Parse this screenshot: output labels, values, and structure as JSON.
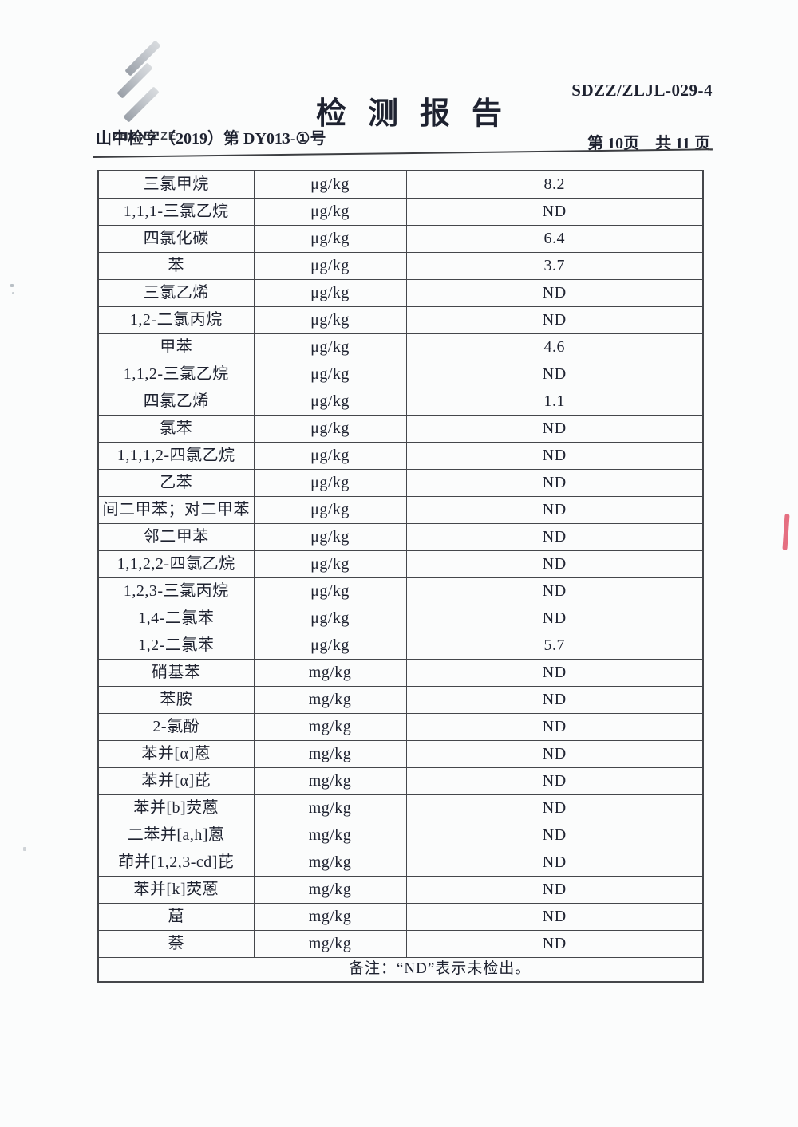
{
  "colors": {
    "paper": "#fbfcfc",
    "ink": "#1e2230",
    "line": "#45474b",
    "logogray": "#aab0b6",
    "redmark": "#e0566b"
  },
  "header": {
    "logo_text": "ZHONG ZE",
    "logo_icon": "three-diagonal-stripes",
    "doc_code": "SDZZ/ZLJL-029-4",
    "title": "检测报告",
    "doc_number": "山中检字（2019）第 DY013-①号",
    "page_info": "第 10页　共 11 页"
  },
  "table": {
    "rows": [
      {
        "name": "三氯甲烷",
        "unit": "μg/kg",
        "value": "8.2"
      },
      {
        "name": "1,1,1-三氯乙烷",
        "unit": "μg/kg",
        "value": "ND"
      },
      {
        "name": "四氯化碳",
        "unit": "μg/kg",
        "value": "6.4"
      },
      {
        "name": "苯",
        "unit": "μg/kg",
        "value": "3.7"
      },
      {
        "name": "三氯乙烯",
        "unit": "μg/kg",
        "value": "ND"
      },
      {
        "name": "1,2-二氯丙烷",
        "unit": "μg/kg",
        "value": "ND"
      },
      {
        "name": "甲苯",
        "unit": "μg/kg",
        "value": "4.6"
      },
      {
        "name": "1,1,2-三氯乙烷",
        "unit": "μg/kg",
        "value": "ND"
      },
      {
        "name": "四氯乙烯",
        "unit": "μg/kg",
        "value": "1.1"
      },
      {
        "name": "氯苯",
        "unit": "μg/kg",
        "value": "ND"
      },
      {
        "name": "1,1,1,2-四氯乙烷",
        "unit": "μg/kg",
        "value": "ND"
      },
      {
        "name": "乙苯",
        "unit": "μg/kg",
        "value": "ND"
      },
      {
        "name": "间二甲苯；对二甲苯",
        "unit": "μg/kg",
        "value": "ND"
      },
      {
        "name": "邻二甲苯",
        "unit": "μg/kg",
        "value": "ND"
      },
      {
        "name": "1,1,2,2-四氯乙烷",
        "unit": "μg/kg",
        "value": "ND"
      },
      {
        "name": "1,2,3-三氯丙烷",
        "unit": "μg/kg",
        "value": "ND"
      },
      {
        "name": "1,4-二氯苯",
        "unit": "μg/kg",
        "value": "ND"
      },
      {
        "name": "1,2-二氯苯",
        "unit": "μg/kg",
        "value": "5.7"
      },
      {
        "name": "硝基苯",
        "unit": "mg/kg",
        "value": "ND"
      },
      {
        "name": "苯胺",
        "unit": "mg/kg",
        "value": "ND"
      },
      {
        "name": "2-氯酚",
        "unit": "mg/kg",
        "value": "ND"
      },
      {
        "name": "苯并[α]蒽",
        "unit": "mg/kg",
        "value": "ND"
      },
      {
        "name": "苯并[α]芘",
        "unit": "mg/kg",
        "value": "ND"
      },
      {
        "name": "苯并[b]荧蒽",
        "unit": "mg/kg",
        "value": "ND"
      },
      {
        "name": "二苯并[a,h]蒽",
        "unit": "mg/kg",
        "value": "ND"
      },
      {
        "name": "茚并[1,2,3-cd]芘",
        "unit": "mg/kg",
        "value": "ND"
      },
      {
        "name": "苯并[k]荧蒽",
        "unit": "mg/kg",
        "value": "ND"
      },
      {
        "name": "䓛",
        "unit": "mg/kg",
        "value": "ND"
      },
      {
        "name": "萘",
        "unit": "mg/kg",
        "value": "ND"
      }
    ],
    "note": "备注：“ND”表示未检出。"
  }
}
